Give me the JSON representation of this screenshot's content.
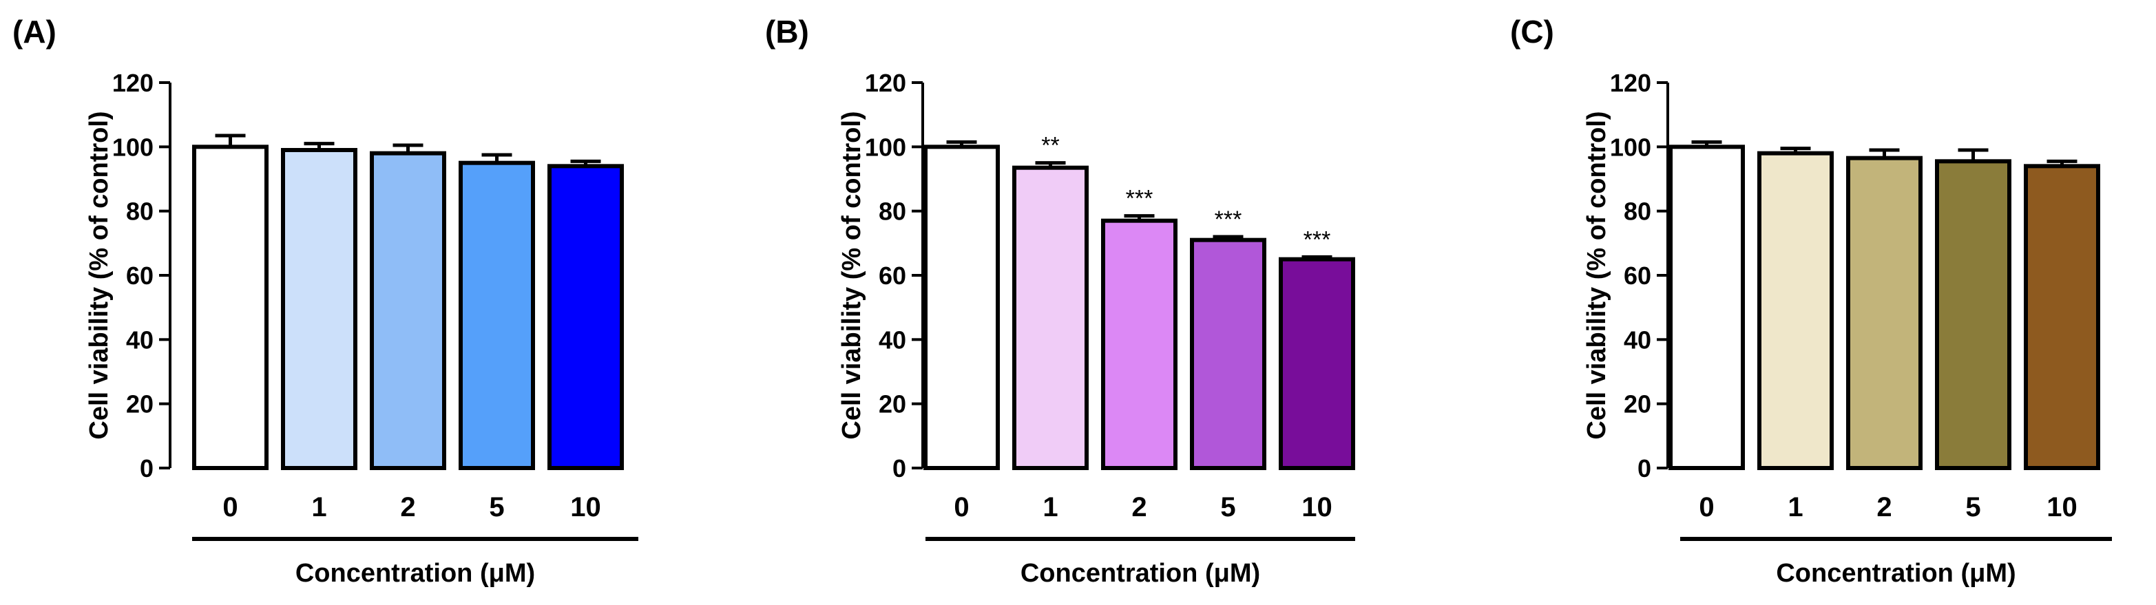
{
  "chart_data": [
    {
      "type": "bar",
      "panel_label": "(A)",
      "categories": [
        "0",
        "1",
        "2",
        "5",
        "10"
      ],
      "values": [
        100,
        99,
        98,
        95,
        94
      ],
      "errors": [
        3.5,
        2,
        2.5,
        2.5,
        1.5
      ],
      "significance": [
        "",
        "",
        "",
        "",
        ""
      ],
      "colors": [
        "#ffffff",
        "#cce0fa",
        "#8fbdf7",
        "#55a0fa",
        "#0000ff"
      ],
      "ylabel": "Cell viability (% of control)",
      "xlabel": "Concentration (μM)",
      "ylim": [
        0,
        120
      ],
      "yticks": [
        "0",
        "20",
        "40",
        "60",
        "80",
        "100",
        "120"
      ]
    },
    {
      "type": "bar",
      "panel_label": "(B)",
      "categories": [
        "0",
        "1",
        "2",
        "5",
        "10"
      ],
      "values": [
        100,
        93.5,
        77,
        71,
        65
      ],
      "errors": [
        1.5,
        1.5,
        1.5,
        1,
        0.7
      ],
      "significance": [
        "",
        "**",
        "***",
        "***",
        "***"
      ],
      "colors": [
        "#ffffff",
        "#f0ccf7",
        "#dc88f5",
        "#b157d9",
        "#780d9a"
      ],
      "ylabel": "Cell viability (% of control)",
      "xlabel": "Concentration (μM)",
      "ylim": [
        0,
        120
      ],
      "yticks": [
        "0",
        "20",
        "40",
        "60",
        "80",
        "100",
        "120"
      ]
    },
    {
      "type": "bar",
      "panel_label": "(C)",
      "categories": [
        "0",
        "1",
        "2",
        "5",
        "10"
      ],
      "values": [
        100,
        98,
        96.5,
        95.5,
        94
      ],
      "errors": [
        1.5,
        1.5,
        2.5,
        3.5,
        1.5
      ],
      "significance": [
        "",
        "",
        "",
        "",
        ""
      ],
      "colors": [
        "#ffffff",
        "#efe7ca",
        "#c2b47a",
        "#8a7c3a",
        "#8e5a1f"
      ],
      "ylabel": "Cell viability (% of control)",
      "xlabel": "Concentration (μM)",
      "ylim": [
        0,
        120
      ],
      "yticks": [
        "0",
        "20",
        "40",
        "60",
        "80",
        "100",
        "120"
      ]
    }
  ]
}
